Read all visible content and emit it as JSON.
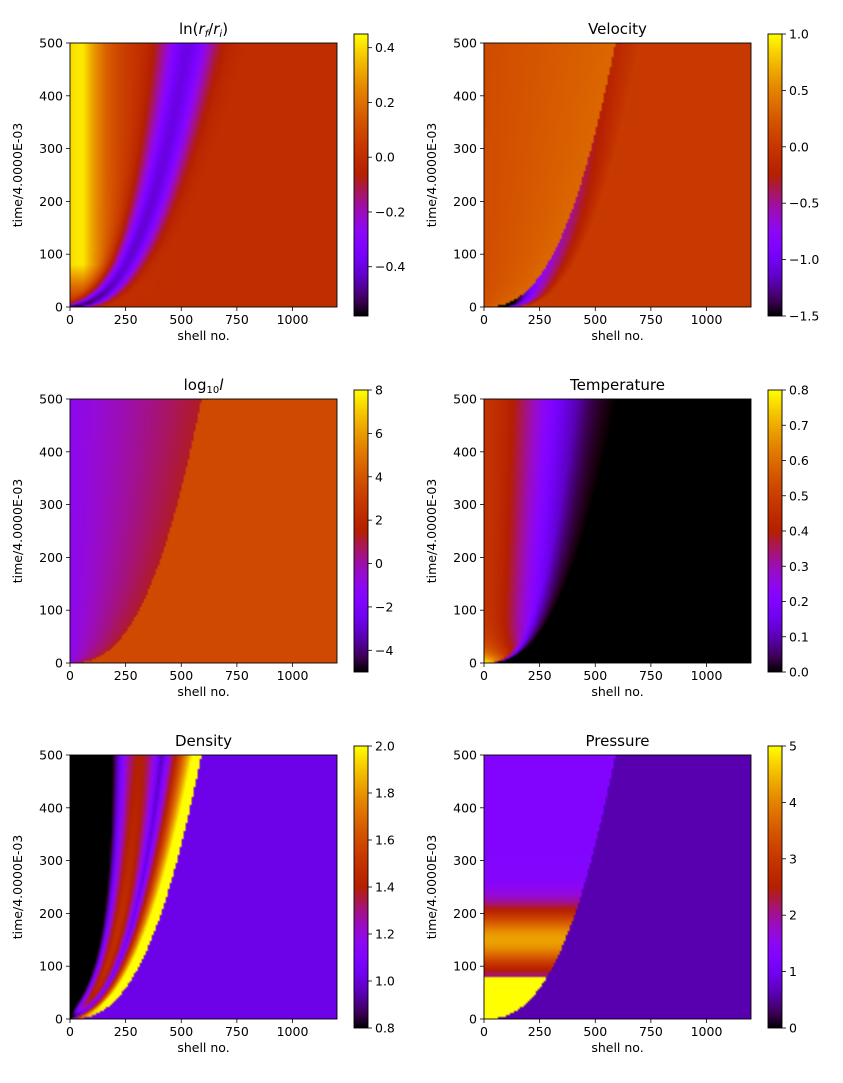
{
  "figure": {
    "colormap": "gnuplot",
    "colormap_stops": [
      "#000000",
      "#9b00ff",
      "#c8361b",
      "#e6a100",
      "#ffff00"
    ]
  },
  "chart_data": [
    {
      "type": "heatmap",
      "field": "lnr",
      "title": "ln(r_f/r_i)",
      "title_parts": [
        "ln(",
        "r",
        "f",
        "/",
        "r",
        "i",
        ")"
      ],
      "xlabel": "shell no.",
      "ylabel": "time/4.0000E-03",
      "xlim": [
        0,
        1200
      ],
      "ylim": [
        0,
        500
      ],
      "xticks": [
        0,
        250,
        500,
        750,
        1000
      ],
      "xtick_labels": [
        "0",
        "250",
        "500",
        "750",
        "1000"
      ],
      "yticks": [
        0,
        100,
        200,
        300,
        400,
        500
      ],
      "ytick_labels": [
        "0",
        "100",
        "200",
        "300",
        "400",
        "500"
      ],
      "clim": [
        -0.58,
        0.45
      ],
      "cticks": [
        0.4,
        0.2,
        0.0,
        -0.2,
        -0.4
      ],
      "ctick_labels": [
        "0.4",
        "0.2",
        "0.0",
        "−0.2",
        "−0.4"
      ]
    },
    {
      "type": "heatmap",
      "field": "velocity",
      "title": "Velocity",
      "title_parts": [
        "Velocity"
      ],
      "xlabel": "shell no.",
      "ylabel": "time/4.0000E-03",
      "xlim": [
        0,
        1200
      ],
      "ylim": [
        0,
        500
      ],
      "xticks": [
        0,
        250,
        500,
        750,
        1000
      ],
      "xtick_labels": [
        "0",
        "250",
        "500",
        "750",
        "1000"
      ],
      "yticks": [
        0,
        100,
        200,
        300,
        400,
        500
      ],
      "ytick_labels": [
        "0",
        "100",
        "200",
        "300",
        "400",
        "500"
      ],
      "clim": [
        -1.5,
        1.0
      ],
      "cticks": [
        1.0,
        0.5,
        0.0,
        -0.5,
        -1.0,
        -1.5
      ],
      "ctick_labels": [
        "1.0",
        "0.5",
        "0.0",
        "−0.5",
        "−1.0",
        "−1.5"
      ]
    },
    {
      "type": "heatmap",
      "field": "logl",
      "title": "log10 l",
      "title_parts": [
        "log",
        "10",
        "l"
      ],
      "xlabel": "shell no.",
      "ylabel": "time/4.0000E-03",
      "xlim": [
        0,
        1200
      ],
      "ylim": [
        0,
        500
      ],
      "xticks": [
        0,
        250,
        500,
        750,
        1000
      ],
      "xtick_labels": [
        "0",
        "250",
        "500",
        "750",
        "1000"
      ],
      "yticks": [
        0,
        100,
        200,
        300,
        400,
        500
      ],
      "ytick_labels": [
        "0",
        "100",
        "200",
        "300",
        "400",
        "500"
      ],
      "clim": [
        -5,
        8
      ],
      "cticks": [
        8,
        6,
        4,
        2,
        0,
        -2,
        -4
      ],
      "ctick_labels": [
        "8",
        "6",
        "4",
        "2",
        "0",
        "−2",
        "−4"
      ]
    },
    {
      "type": "heatmap",
      "field": "temperature",
      "title": "Temperature",
      "title_parts": [
        "Temperature"
      ],
      "xlabel": "shell no.",
      "ylabel": "time/4.0000E-03",
      "xlim": [
        0,
        1200
      ],
      "ylim": [
        0,
        500
      ],
      "xticks": [
        0,
        250,
        500,
        750,
        1000
      ],
      "xtick_labels": [
        "0",
        "250",
        "500",
        "750",
        "1000"
      ],
      "yticks": [
        0,
        100,
        200,
        300,
        400,
        500
      ],
      "ytick_labels": [
        "0",
        "100",
        "200",
        "300",
        "400",
        "500"
      ],
      "clim": [
        0.0,
        0.8
      ],
      "cticks": [
        0.8,
        0.7,
        0.6,
        0.5,
        0.4,
        0.3,
        0.2,
        0.1,
        0.0
      ],
      "ctick_labels": [
        "0.8",
        "0.7",
        "0.6",
        "0.5",
        "0.4",
        "0.3",
        "0.2",
        "0.1",
        "0.0"
      ]
    },
    {
      "type": "heatmap",
      "field": "density",
      "title": "Density",
      "title_parts": [
        "Density"
      ],
      "xlabel": "shell no.",
      "ylabel": "time/4.0000E-03",
      "xlim": [
        0,
        1200
      ],
      "ylim": [
        0,
        500
      ],
      "xticks": [
        0,
        250,
        500,
        750,
        1000
      ],
      "xtick_labels": [
        "0",
        "250",
        "500",
        "750",
        "1000"
      ],
      "yticks": [
        0,
        100,
        200,
        300,
        400,
        500
      ],
      "ytick_labels": [
        "0",
        "100",
        "200",
        "300",
        "400",
        "500"
      ],
      "clim": [
        0.8,
        2.0
      ],
      "cticks": [
        2.0,
        1.8,
        1.6,
        1.4,
        1.2,
        1.0,
        0.8
      ],
      "ctick_labels": [
        "2.0",
        "1.8",
        "1.6",
        "1.4",
        "1.2",
        "1.0",
        "0.8"
      ]
    },
    {
      "type": "heatmap",
      "field": "pressure",
      "title": "Pressure",
      "title_parts": [
        "Pressure"
      ],
      "xlabel": "shell no.",
      "ylabel": "time/4.0000E-03",
      "xlim": [
        0,
        1200
      ],
      "ylim": [
        0,
        500
      ],
      "xticks": [
        0,
        250,
        500,
        750,
        1000
      ],
      "xtick_labels": [
        "0",
        "250",
        "500",
        "750",
        "1000"
      ],
      "yticks": [
        0,
        100,
        200,
        300,
        400,
        500
      ],
      "ytick_labels": [
        "0",
        "100",
        "200",
        "300",
        "400",
        "500"
      ],
      "clim": [
        0,
        5
      ],
      "cticks": [
        5,
        4,
        3,
        2,
        1,
        0
      ],
      "ctick_labels": [
        "5",
        "4",
        "3",
        "2",
        "1",
        "0"
      ]
    }
  ]
}
